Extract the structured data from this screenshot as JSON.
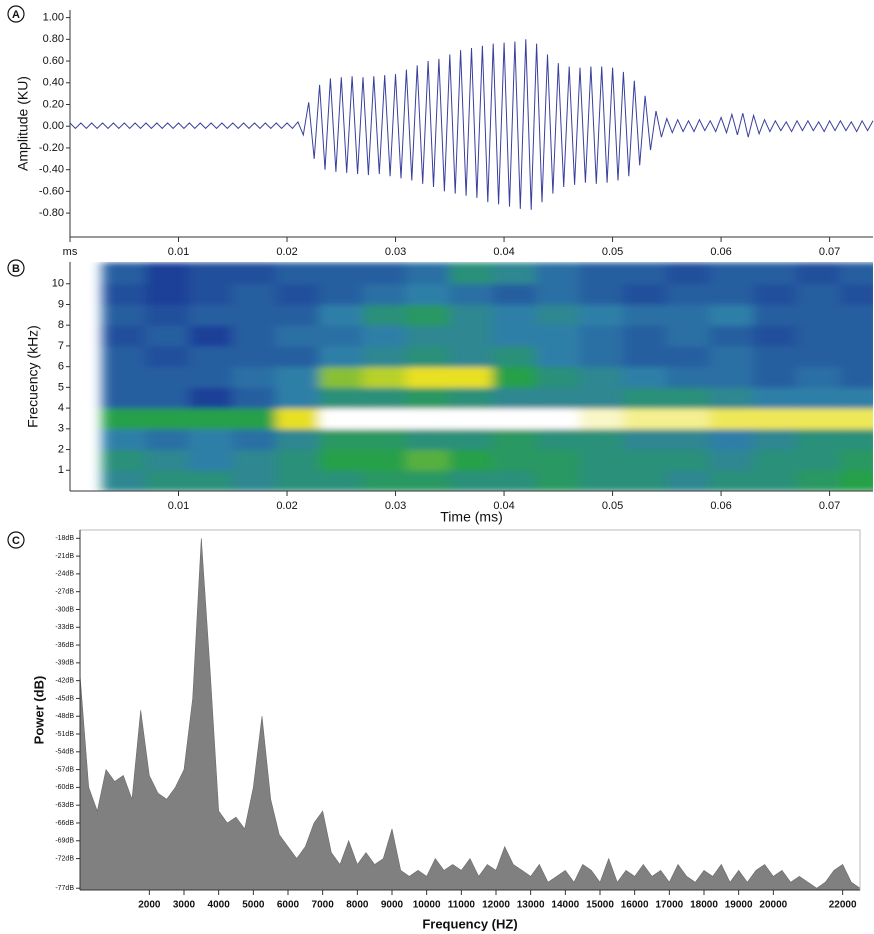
{
  "chart_data": [
    {
      "type": "line",
      "panel": "A",
      "y_label": "Amplitude (KU)",
      "x": [
        0,
        0.0005,
        0.001,
        0.0015,
        0.002,
        0.0025,
        0.003,
        0.0035,
        0.004,
        0.0045,
        0.005,
        0.0055,
        0.006,
        0.0065,
        0.007,
        0.0075,
        0.008,
        0.0085,
        0.009,
        0.0095,
        0.01,
        0.0105,
        0.011,
        0.0115,
        0.012,
        0.0125,
        0.013,
        0.0135,
        0.014,
        0.0145,
        0.015,
        0.0155,
        0.016,
        0.0165,
        0.017,
        0.0175,
        0.018,
        0.0185,
        0.019,
        0.0195,
        0.02,
        0.0205,
        0.021,
        0.0215,
        0.022,
        0.0225,
        0.023,
        0.0235,
        0.024,
        0.0245,
        0.025,
        0.0255,
        0.026,
        0.0265,
        0.027,
        0.0275,
        0.028,
        0.0285,
        0.029,
        0.0295,
        0.03,
        0.0305,
        0.031,
        0.0315,
        0.032,
        0.0325,
        0.033,
        0.0335,
        0.034,
        0.0345,
        0.035,
        0.0355,
        0.036,
        0.0365,
        0.037,
        0.0375,
        0.038,
        0.0385,
        0.039,
        0.0395,
        0.04,
        0.0405,
        0.041,
        0.0415,
        0.042,
        0.0425,
        0.043,
        0.0435,
        0.044,
        0.0445,
        0.045,
        0.0455,
        0.046,
        0.0465,
        0.047,
        0.0475,
        0.048,
        0.0485,
        0.049,
        0.0495,
        0.05,
        0.0505,
        0.051,
        0.0515,
        0.052,
        0.0525,
        0.053,
        0.0535,
        0.054,
        0.0545,
        0.055,
        0.0555,
        0.056,
        0.0565,
        0.057,
        0.0575,
        0.058,
        0.0585,
        0.059,
        0.0595,
        0.06,
        0.0605,
        0.061,
        0.0615,
        0.062,
        0.0625,
        0.063,
        0.0635,
        0.064,
        0.0645,
        0.065,
        0.0655,
        0.066,
        0.0665,
        0.067,
        0.0675,
        0.068,
        0.0685,
        0.069,
        0.0695,
        0.07,
        0.0705,
        0.071,
        0.0715,
        0.072,
        0.0725,
        0.073,
        0.0735,
        0.074
      ],
      "series": [
        {
          "color": "#3a3f9e",
          "values": [
            0.03,
            -0.02,
            0.03,
            -0.02,
            0.03,
            -0.02,
            0.03,
            -0.02,
            0.03,
            -0.02,
            0.03,
            -0.02,
            0.03,
            -0.02,
            0.03,
            -0.02,
            0.03,
            -0.02,
            0.03,
            -0.02,
            0.03,
            -0.02,
            0.03,
            -0.02,
            0.03,
            -0.02,
            0.03,
            -0.02,
            0.03,
            -0.02,
            0.03,
            -0.02,
            0.03,
            -0.02,
            0.03,
            -0.02,
            0.03,
            -0.02,
            0.03,
            -0.02,
            0.03,
            -0.02,
            0.04,
            -0.08,
            0.22,
            -0.3,
            0.38,
            -0.4,
            0.44,
            -0.42,
            0.45,
            -0.43,
            0.46,
            -0.44,
            0.45,
            -0.45,
            0.46,
            -0.44,
            0.47,
            -0.46,
            0.48,
            -0.48,
            0.52,
            -0.5,
            0.56,
            -0.53,
            0.6,
            -0.56,
            0.62,
            -0.6,
            0.66,
            -0.62,
            0.7,
            -0.64,
            0.72,
            -0.66,
            0.74,
            -0.7,
            0.76,
            -0.72,
            0.77,
            -0.74,
            0.78,
            -0.76,
            0.8,
            -0.77,
            0.76,
            -0.7,
            0.66,
            -0.62,
            0.58,
            -0.56,
            0.55,
            -0.54,
            0.54,
            -0.52,
            0.55,
            -0.53,
            0.55,
            -0.52,
            0.54,
            -0.5,
            0.5,
            -0.46,
            0.42,
            -0.36,
            0.28,
            -0.22,
            0.14,
            -0.1,
            0.07,
            -0.06,
            0.06,
            -0.05,
            0.05,
            -0.05,
            0.06,
            -0.04,
            0.05,
            -0.05,
            0.08,
            -0.06,
            0.11,
            -0.08,
            0.12,
            -0.1,
            0.1,
            -0.07,
            0.06,
            -0.05,
            0.05,
            -0.04,
            0.04,
            -0.05,
            0.05,
            -0.04,
            0.05,
            -0.04,
            0.04,
            -0.05,
            0.05,
            -0.04,
            0.05,
            -0.04,
            0.04,
            -0.05,
            0.05,
            -0.04,
            0.05
          ]
        }
      ],
      "xlim": [
        0,
        0.074
      ],
      "xticks": [
        {
          "value": 0,
          "label": "ms"
        },
        0.01,
        0.02,
        0.03,
        0.04,
        0.05,
        0.06,
        0.07
      ],
      "ylim": [
        -1.02,
        1.07
      ],
      "yticks": [
        {
          "value": 1,
          "label": "1.00"
        },
        {
          "value": 0.8,
          "label": "0.80"
        },
        {
          "value": 0.6,
          "label": "0.60"
        },
        {
          "value": 0.4,
          "label": "0.40"
        },
        {
          "value": 0.2,
          "label": "0.20"
        },
        {
          "value": 0,
          "label": "0.00"
        },
        {
          "value": -0.2,
          "label": "-0.20"
        },
        {
          "value": -0.4,
          "label": "-0.40"
        },
        {
          "value": -0.6,
          "label": "-0.60"
        },
        {
          "value": -0.8,
          "label": "-0.80"
        }
      ]
    },
    {
      "type": "heatmap",
      "panel": "B",
      "y_label": "Frecuency (kHz)",
      "x_label": "Time (ms)",
      "x_edges": [
        0.003,
        0.007,
        0.011,
        0.015,
        0.019,
        0.023,
        0.027,
        0.031,
        0.035,
        0.039,
        0.043,
        0.047,
        0.051,
        0.055,
        0.059,
        0.063,
        0.067,
        0.071,
        0.075
      ],
      "y_edges": [
        0,
        1,
        2,
        3,
        4,
        5,
        6,
        7,
        8,
        9,
        10,
        11
      ],
      "z": [
        [
          0.45,
          0.5,
          0.5,
          0.45,
          0.5,
          0.5,
          0.55,
          0.55,
          0.5,
          0.5,
          0.55,
          0.5,
          0.5,
          0.45,
          0.5,
          0.5,
          0.55,
          0.6
        ],
        [
          0.5,
          0.45,
          0.4,
          0.45,
          0.5,
          0.6,
          0.6,
          0.65,
          0.6,
          0.55,
          0.55,
          0.5,
          0.5,
          0.5,
          0.45,
          0.5,
          0.5,
          0.55
        ],
        [
          0.4,
          0.35,
          0.4,
          0.35,
          0.45,
          0.55,
          0.55,
          0.5,
          0.5,
          0.55,
          0.5,
          0.5,
          0.45,
          0.45,
          0.4,
          0.45,
          0.5,
          0.5
        ],
        [
          0.6,
          0.6,
          0.6,
          0.6,
          0.8,
          1,
          1,
          1,
          1,
          1,
          1,
          0.95,
          0.9,
          0.9,
          0.85,
          0.85,
          0.85,
          0.85
        ],
        [
          0.3,
          0.3,
          0.2,
          0.3,
          0.4,
          0.5,
          0.5,
          0.55,
          0.5,
          0.45,
          0.45,
          0.45,
          0.5,
          0.5,
          0.45,
          0.4,
          0.4,
          0.4
        ],
        [
          0.3,
          0.3,
          0.3,
          0.35,
          0.4,
          0.7,
          0.75,
          0.8,
          0.8,
          0.6,
          0.5,
          0.45,
          0.4,
          0.35,
          0.35,
          0.3,
          0.35,
          0.3
        ],
        [
          0.3,
          0.25,
          0.3,
          0.3,
          0.3,
          0.4,
          0.45,
          0.5,
          0.45,
          0.5,
          0.4,
          0.35,
          0.3,
          0.3,
          0.35,
          0.3,
          0.3,
          0.3
        ],
        [
          0.25,
          0.3,
          0.2,
          0.3,
          0.35,
          0.35,
          0.4,
          0.45,
          0.45,
          0.4,
          0.4,
          0.35,
          0.3,
          0.35,
          0.3,
          0.25,
          0.3,
          0.3
        ],
        [
          0.3,
          0.25,
          0.3,
          0.3,
          0.3,
          0.4,
          0.5,
          0.55,
          0.45,
          0.4,
          0.45,
          0.4,
          0.35,
          0.35,
          0.4,
          0.3,
          0.3,
          0.3
        ],
        [
          0.25,
          0.2,
          0.25,
          0.3,
          0.25,
          0.3,
          0.35,
          0.4,
          0.35,
          0.3,
          0.35,
          0.3,
          0.25,
          0.3,
          0.3,
          0.25,
          0.3,
          0.25
        ],
        [
          0.3,
          0.2,
          0.25,
          0.25,
          0.3,
          0.3,
          0.3,
          0.35,
          0.5,
          0.45,
          0.35,
          0.3,
          0.3,
          0.25,
          0.3,
          0.3,
          0.25,
          0.3
        ]
      ],
      "colors": [
        "#0a1450",
        "#1d3f98",
        "#2f7fa8",
        "#27a04a",
        "#e8e020",
        "#ffffff"
      ],
      "xlim": [
        0,
        0.074
      ],
      "xticks": [
        0.01,
        0.02,
        0.03,
        0.04,
        0.05,
        0.06,
        0.07
      ],
      "ylim": [
        0,
        11.05
      ],
      "yticks": [
        1,
        2,
        3,
        4,
        5,
        6,
        7,
        8,
        9,
        10
      ]
    },
    {
      "type": "area",
      "panel": "C",
      "y_label": "Power (dB)",
      "x_label": "Frequency (HZ)",
      "color": "#808080",
      "x": [
        0,
        250,
        500,
        750,
        1000,
        1250,
        1500,
        1750,
        2000,
        2250,
        2500,
        2750,
        3000,
        3250,
        3500,
        3750,
        4000,
        4250,
        4500,
        4750,
        5000,
        5250,
        5500,
        5750,
        6000,
        6250,
        6500,
        6750,
        7000,
        7250,
        7500,
        7750,
        8000,
        8250,
        8500,
        8750,
        9000,
        9250,
        9500,
        9750,
        10000,
        10250,
        10500,
        10750,
        11000,
        11250,
        11500,
        11750,
        12000,
        12250,
        12500,
        12750,
        13000,
        13250,
        13500,
        13750,
        14000,
        14250,
        14500,
        14750,
        15000,
        15250,
        15500,
        15750,
        16000,
        16250,
        16500,
        16750,
        17000,
        17250,
        17500,
        17750,
        18000,
        18250,
        18500,
        18750,
        19000,
        19250,
        19500,
        19750,
        20000,
        20250,
        20500,
        20750,
        21000,
        21250,
        21500,
        21750,
        22000,
        22250,
        22500
      ],
      "values": [
        -41,
        -60,
        -64,
        -57,
        -59,
        -58,
        -62,
        -47,
        -58,
        -61,
        -62,
        -60,
        -57,
        -45,
        -18,
        -40,
        -64,
        -66,
        -65,
        -67,
        -60,
        -48,
        -62,
        -68,
        -70,
        -72,
        -70,
        -66,
        -64,
        -71,
        -73,
        -69,
        -73,
        -71,
        -73,
        -72,
        -67,
        -74,
        -75,
        -74,
        -75,
        -72,
        -74,
        -73,
        -74,
        -72,
        -75,
        -73,
        -74,
        -70,
        -73,
        -74,
        -75,
        -73,
        -76,
        -75,
        -74,
        -76,
        -73,
        -74,
        -76,
        -72,
        -76,
        -74,
        -75,
        -73,
        -75,
        -74,
        -76,
        -73,
        -75,
        -76,
        -74,
        -75,
        -73,
        -76,
        -74,
        -76,
        -74,
        -73,
        -75,
        -74,
        -76,
        -75,
        -76,
        -77,
        -76,
        -74,
        -73,
        -76,
        -77
      ],
      "xlim": [
        0,
        22500
      ],
      "xticks": [
        2000,
        3000,
        4000,
        5000,
        6000,
        7000,
        8000,
        9000,
        10000,
        11000,
        12000,
        13000,
        14000,
        15000,
        16000,
        17000,
        18000,
        19000,
        20000,
        22000
      ],
      "ylim": [
        -77.3,
        -16.6
      ],
      "yticks": [
        {
          "value": -18,
          "label": "-18dB"
        },
        {
          "value": -21,
          "label": "-21dB"
        },
        {
          "value": -24,
          "label": "-24dB"
        },
        {
          "value": -27,
          "label": "-27dB"
        },
        {
          "value": -30,
          "label": "-30dB"
        },
        {
          "value": -33,
          "label": "-33dB"
        },
        {
          "value": -36,
          "label": "-36dB"
        },
        {
          "value": -39,
          "label": "-39dB"
        },
        {
          "value": -42,
          "label": "-42dB"
        },
        {
          "value": -45,
          "label": "-45dB"
        },
        {
          "value": -48,
          "label": "-48dB"
        },
        {
          "value": -51,
          "label": "-51dB"
        },
        {
          "value": -54,
          "label": "-54dB"
        },
        {
          "value": -57,
          "label": "-57dB"
        },
        {
          "value": -60,
          "label": "-60dB"
        },
        {
          "value": -63,
          "label": "-63dB"
        },
        {
          "value": -66,
          "label": "-66dB"
        },
        {
          "value": -69,
          "label": "-69dB"
        },
        {
          "value": -72,
          "label": "-72dB"
        },
        {
          "value": -77,
          "label": "-77dB"
        }
      ]
    }
  ]
}
